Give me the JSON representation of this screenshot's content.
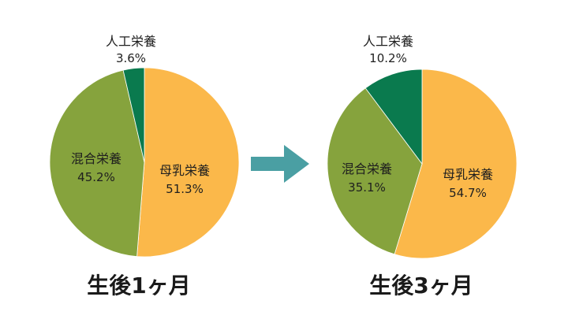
{
  "chart_data": [
    {
      "type": "pie",
      "title": "生後1ヶ月",
      "start_series": "母乳栄養",
      "direction": "clockwise",
      "slices": [
        {
          "name": "母乳栄養",
          "label": "母乳栄養",
          "percent_label": "51.3%",
          "value": 51.3,
          "color": "#FBB84A"
        },
        {
          "name": "混合栄養",
          "label": "混合栄養",
          "percent_label": "45.2%",
          "value": 45.2,
          "color": "#86A33D"
        },
        {
          "name": "人工栄養",
          "label": "人工栄養",
          "percent_label": "3.6%",
          "value": 3.6,
          "color": "#0A7A4E"
        }
      ]
    },
    {
      "type": "pie",
      "title": "生後3ヶ月",
      "start_series": "母乳栄養",
      "direction": "clockwise",
      "slices": [
        {
          "name": "母乳栄養",
          "label": "母乳栄養",
          "percent_label": "54.7%",
          "value": 54.7,
          "color": "#FBB84A"
        },
        {
          "name": "混合栄養",
          "label": "混合栄養",
          "percent_label": "35.1%",
          "value": 35.1,
          "color": "#86A33D"
        },
        {
          "name": "人工栄養",
          "label": "人工栄養",
          "percent_label": "10.2%",
          "value": 10.2,
          "color": "#0A7A4E"
        }
      ]
    }
  ],
  "arrow": {
    "color": "#4A9FA3",
    "icon": "right-arrow-icon"
  }
}
